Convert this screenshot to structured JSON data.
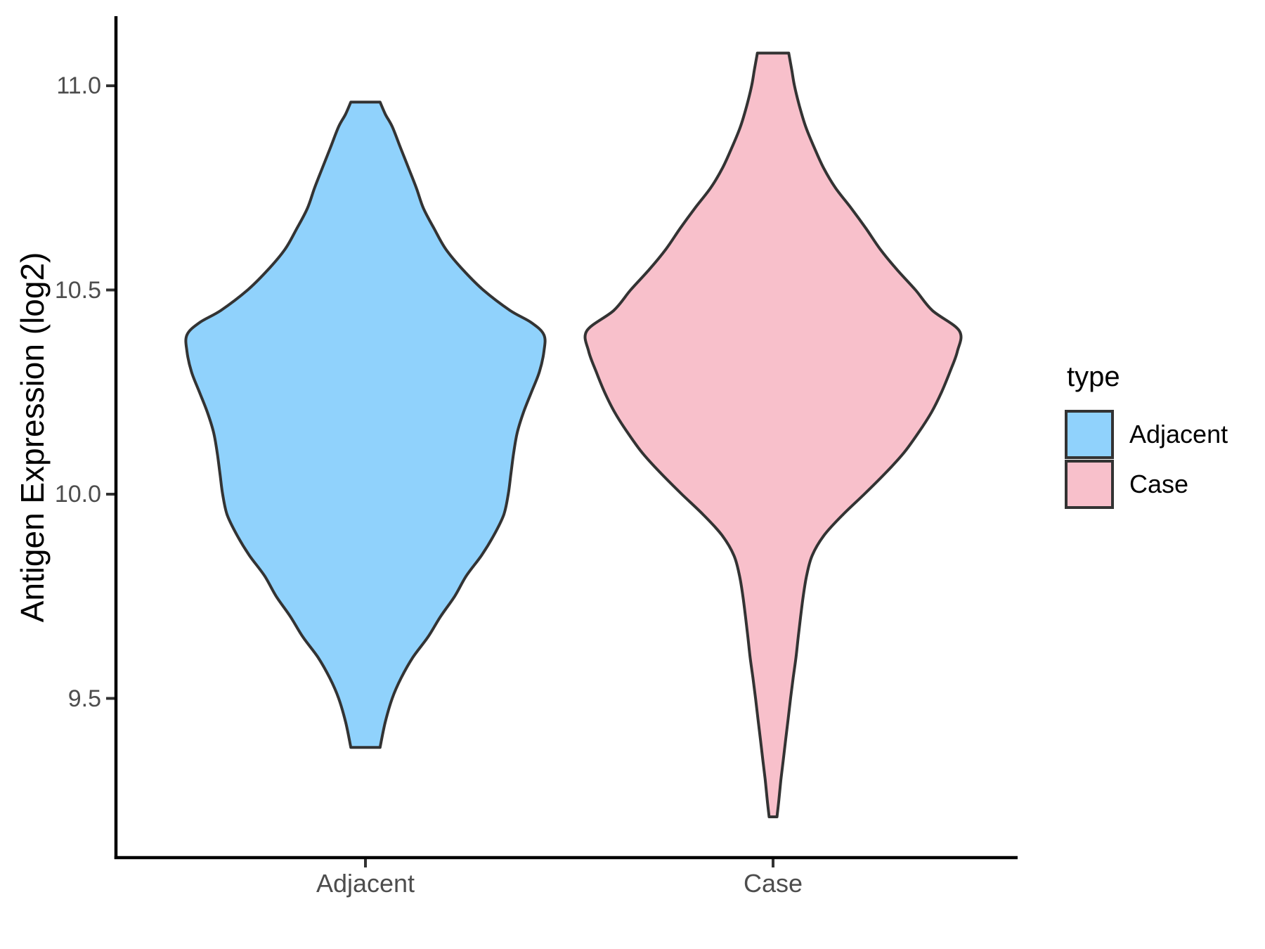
{
  "chart_data": {
    "type": "violin",
    "title": "",
    "xlabel": "",
    "ylabel": "Antigen Expression (log2)",
    "categories": [
      "Adjacent",
      "Case"
    ],
    "y_axis": {
      "ticks": [
        {
          "label": "11.0",
          "value": 11.0
        },
        {
          "label": "10.5",
          "value": 10.5
        },
        {
          "label": "10.0",
          "value": 10.0
        },
        {
          "label": "9.5",
          "value": 9.5
        }
      ],
      "shown_range": [
        9.11,
        11.17
      ],
      "grid": false
    },
    "legend": {
      "title": "type",
      "position": "right",
      "entries": [
        {
          "label": "Adjacent",
          "fill": "#90D2FC"
        },
        {
          "label": "Case",
          "fill": "#F8C0CB"
        }
      ]
    },
    "style": {
      "outline_color": "#333333",
      "axis_color": "#000000",
      "tick_color": "#333333",
      "tick_label_color": "#4D4D4D",
      "text_color": "#000000",
      "background": "#FFFFFF"
    },
    "series": [
      {
        "name": "Adjacent",
        "fill": "#90D2FC",
        "min": 9.38,
        "max": 10.96,
        "peak": 10.37,
        "density_profile": [
          [
            10.96,
            0.082
          ],
          [
            10.93,
            0.112
          ],
          [
            10.9,
            0.15
          ],
          [
            10.85,
            0.195
          ],
          [
            10.8,
            0.24
          ],
          [
            10.75,
            0.285
          ],
          [
            10.7,
            0.325
          ],
          [
            10.65,
            0.385
          ],
          [
            10.6,
            0.45
          ],
          [
            10.55,
            0.545
          ],
          [
            10.5,
            0.66
          ],
          [
            10.45,
            0.81
          ],
          [
            10.42,
            0.93
          ],
          [
            10.39,
            1.0
          ],
          [
            10.35,
            1.0
          ],
          [
            10.3,
            0.975
          ],
          [
            10.25,
            0.93
          ],
          [
            10.2,
            0.885
          ],
          [
            10.15,
            0.85
          ],
          [
            10.1,
            0.83
          ],
          [
            10.05,
            0.815
          ],
          [
            10.0,
            0.8
          ],
          [
            9.95,
            0.775
          ],
          [
            9.9,
            0.72
          ],
          [
            9.85,
            0.65
          ],
          [
            9.8,
            0.565
          ],
          [
            9.75,
            0.5
          ],
          [
            9.7,
            0.42
          ],
          [
            9.65,
            0.35
          ],
          [
            9.6,
            0.265
          ],
          [
            9.55,
            0.2
          ],
          [
            9.5,
            0.15
          ],
          [
            9.44,
            0.11
          ],
          [
            9.38,
            0.082
          ]
        ]
      },
      {
        "name": "Case",
        "fill": "#F8C0CB",
        "min": 9.21,
        "max": 11.08,
        "peak": 10.4,
        "density_profile": [
          [
            11.08,
            0.084
          ],
          [
            11.04,
            0.1
          ],
          [
            11.0,
            0.115
          ],
          [
            10.95,
            0.142
          ],
          [
            10.9,
            0.175
          ],
          [
            10.85,
            0.22
          ],
          [
            10.8,
            0.27
          ],
          [
            10.75,
            0.335
          ],
          [
            10.7,
            0.42
          ],
          [
            10.65,
            0.5
          ],
          [
            10.6,
            0.575
          ],
          [
            10.55,
            0.665
          ],
          [
            10.5,
            0.765
          ],
          [
            10.45,
            0.855
          ],
          [
            10.4,
            1.0
          ],
          [
            10.35,
            0.99
          ],
          [
            10.3,
            0.95
          ],
          [
            10.25,
            0.905
          ],
          [
            10.2,
            0.85
          ],
          [
            10.15,
            0.78
          ],
          [
            10.1,
            0.7
          ],
          [
            10.05,
            0.6
          ],
          [
            10.0,
            0.49
          ],
          [
            9.95,
            0.375
          ],
          [
            9.9,
            0.275
          ],
          [
            9.85,
            0.21
          ],
          [
            9.8,
            0.18
          ],
          [
            9.75,
            0.162
          ],
          [
            9.7,
            0.148
          ],
          [
            9.65,
            0.135
          ],
          [
            9.6,
            0.123
          ],
          [
            9.55,
            0.108
          ],
          [
            9.5,
            0.094
          ],
          [
            9.45,
            0.081
          ],
          [
            9.4,
            0.068
          ],
          [
            9.35,
            0.055
          ],
          [
            9.3,
            0.042
          ],
          [
            9.25,
            0.031
          ],
          [
            9.21,
            0.021
          ]
        ]
      }
    ]
  }
}
